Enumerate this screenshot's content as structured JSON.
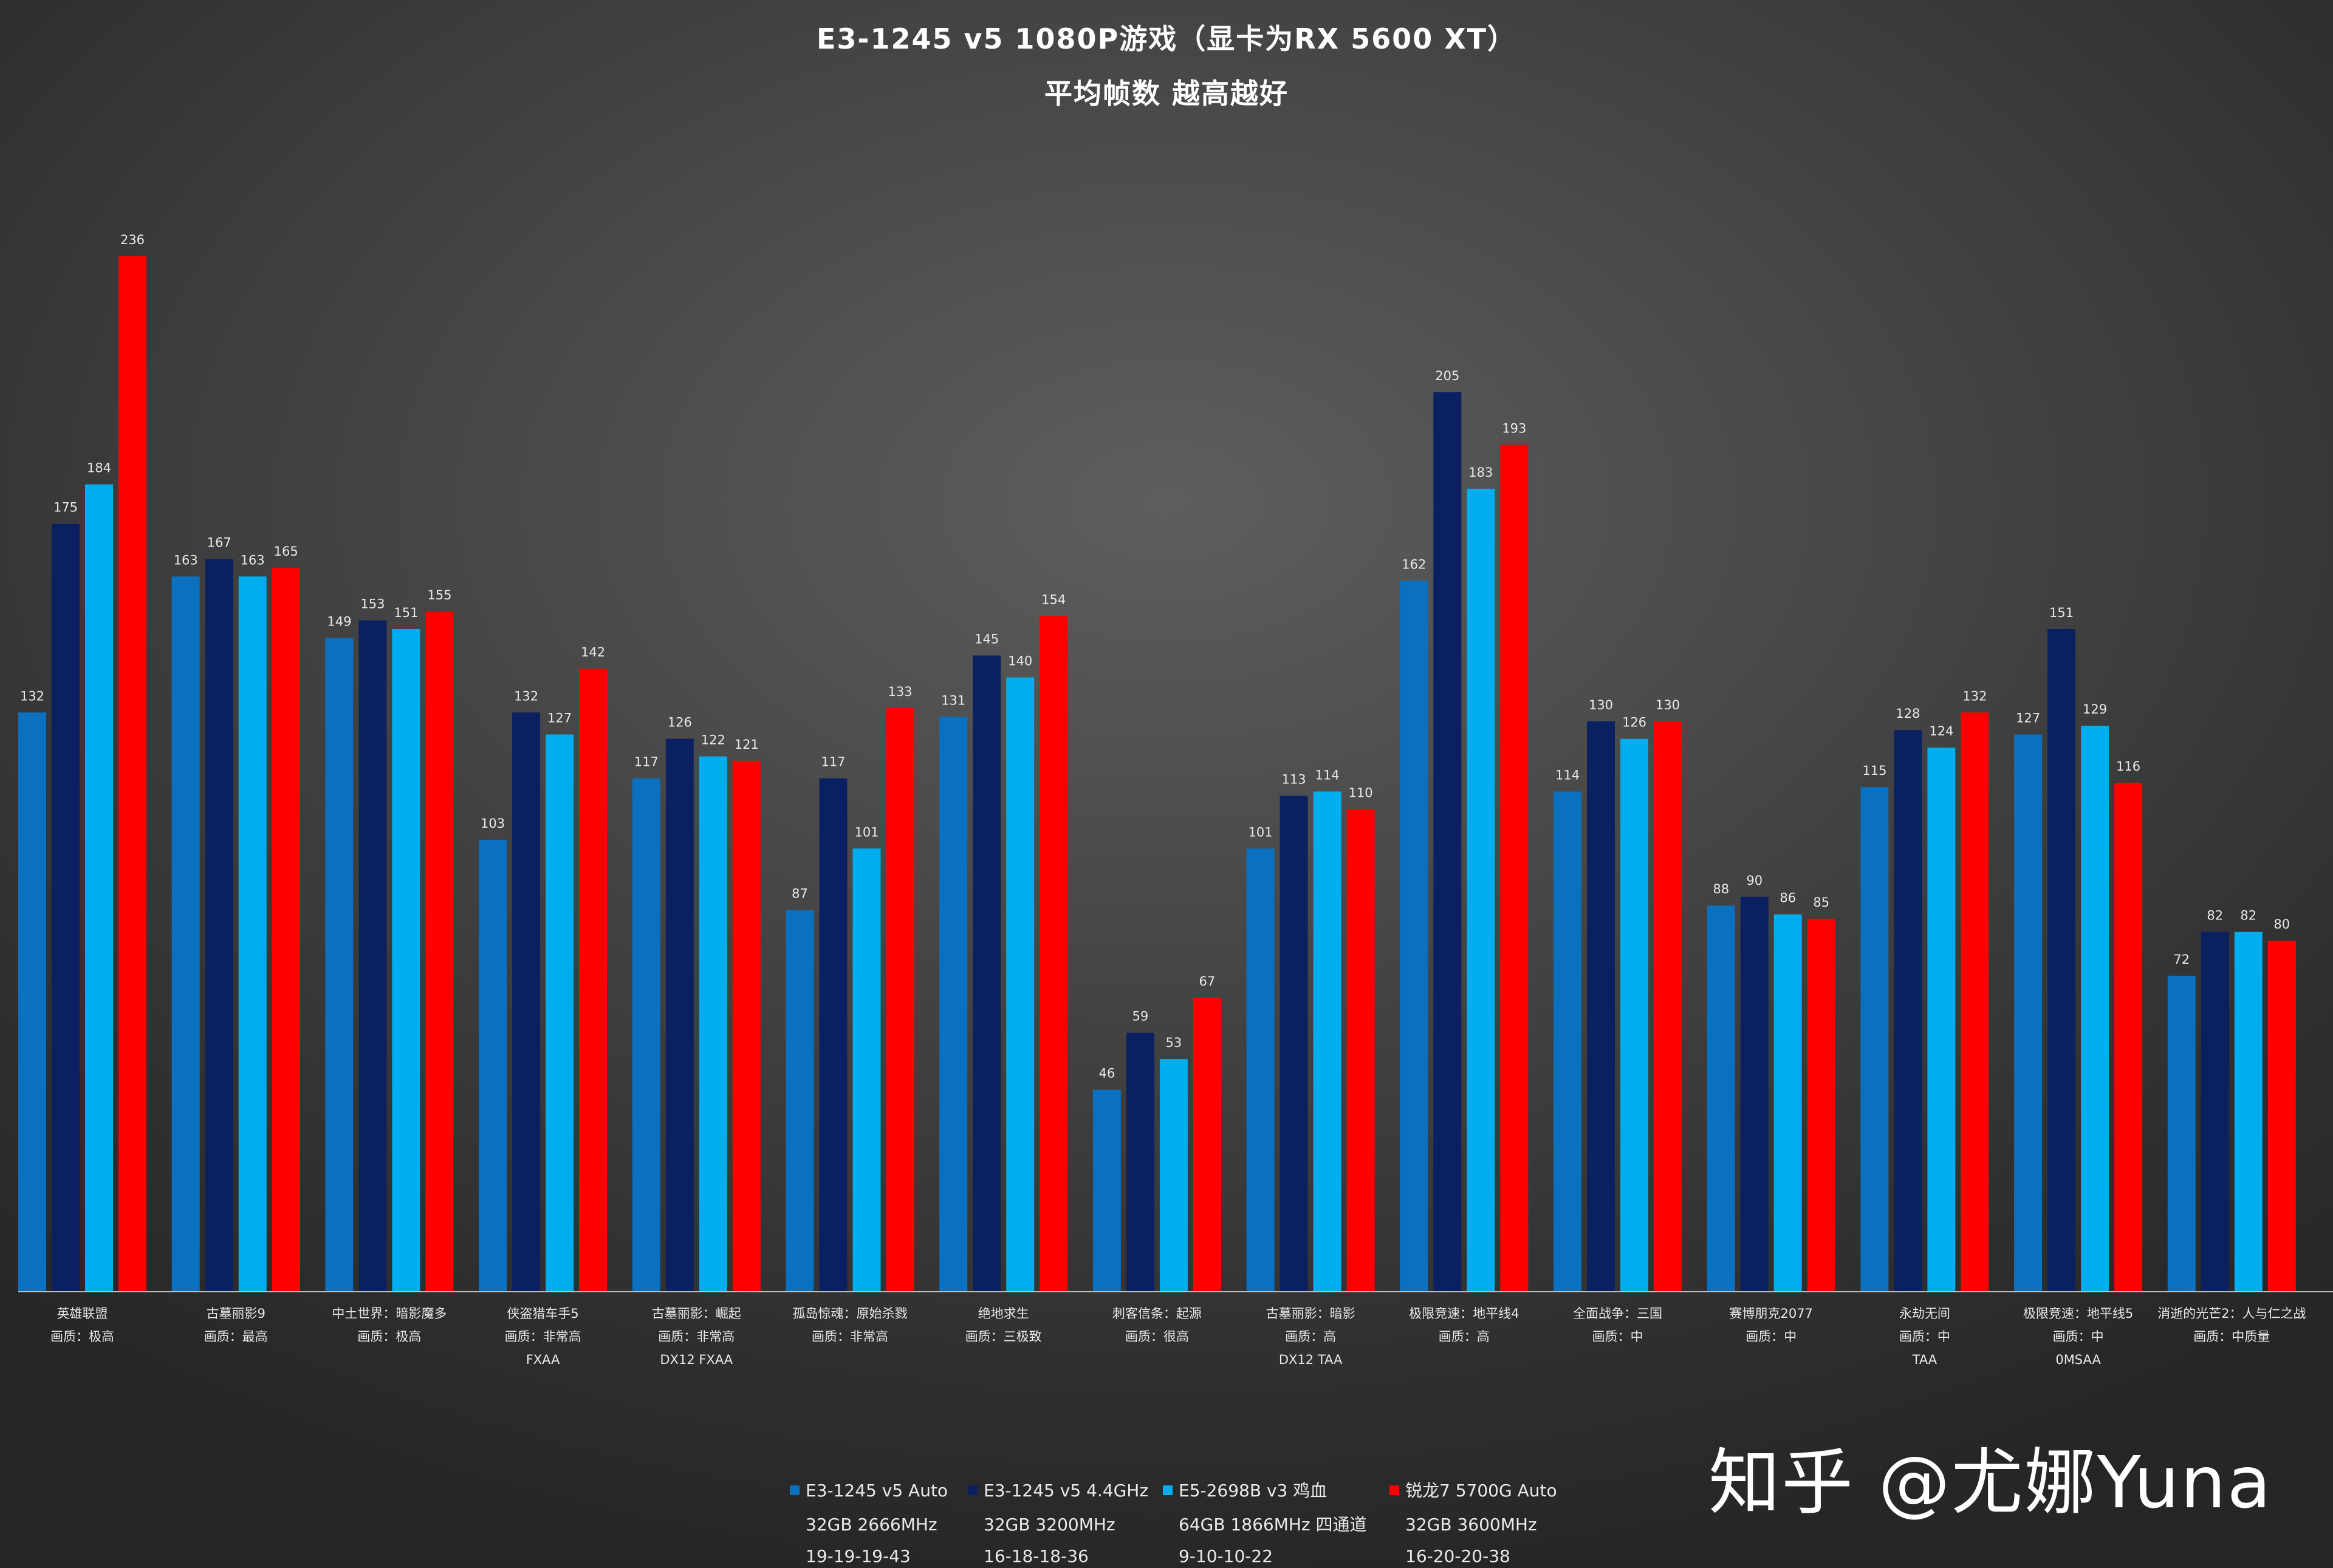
{
  "chart_data": {
    "type": "bar",
    "title": "E3-1245 v5 1080P游戏（显卡为RX 5600 XT）",
    "subtitle": "平均帧数 越高越好",
    "ylim": [
      0,
      250
    ],
    "grid": false,
    "legend_position": "bottom",
    "categories": [
      {
        "lines": [
          "英雄联盟",
          "画质：极高"
        ]
      },
      {
        "lines": [
          "古墓丽影9",
          "画质：最高"
        ]
      },
      {
        "lines": [
          "中土世界：暗影魔多",
          "画质：极高"
        ]
      },
      {
        "lines": [
          "侠盗猎车手5",
          "画质：非常高",
          "FXAA"
        ]
      },
      {
        "lines": [
          "古墓丽影：崛起",
          "画质：非常高",
          "DX12 FXAA"
        ]
      },
      {
        "lines": [
          "孤岛惊魂：原始杀戮",
          "画质：非常高"
        ]
      },
      {
        "lines": [
          "绝地求生",
          "画质：三极致"
        ]
      },
      {
        "lines": [
          "刺客信条：起源",
          "画质：很高"
        ]
      },
      {
        "lines": [
          "古墓丽影：暗影",
          "画质：高",
          "DX12 TAA"
        ]
      },
      {
        "lines": [
          "极限竞速：地平线4",
          "画质：高"
        ]
      },
      {
        "lines": [
          "全面战争：三国",
          "画质：中"
        ]
      },
      {
        "lines": [
          "赛博朋克2077",
          "画质：中"
        ]
      },
      {
        "lines": [
          "永劫无间",
          "画质：中",
          "TAA"
        ]
      },
      {
        "lines": [
          "极限竞速：地平线5",
          "画质：中",
          "0MSAA"
        ]
      },
      {
        "lines": [
          "消逝的光芒2：人与仁之战",
          "画质：中质量"
        ]
      }
    ],
    "series": [
      {
        "name": "E3-1245 v5 Auto",
        "name_lines": [
          "32GB 2666MHz",
          "19-19-19-43"
        ],
        "color": "#0A70C0",
        "values": [
          132,
          163,
          149,
          103,
          117,
          87,
          131,
          46,
          101,
          162,
          114,
          88,
          115,
          127,
          72
        ]
      },
      {
        "name": "E3-1245 v5 4.4GHz",
        "name_lines": [
          "32GB 3200MHz",
          "16-18-18-36"
        ],
        "color": "#0A2060",
        "values": [
          175,
          167,
          153,
          132,
          126,
          117,
          145,
          59,
          113,
          205,
          130,
          90,
          128,
          151,
          82
        ]
      },
      {
        "name": "E5-2698B v3 鸡血",
        "name_lines": [
          "64GB 1866MHz 四通道",
          "9-10-10-22"
        ],
        "color": "#00AEEF",
        "values": [
          184,
          163,
          151,
          127,
          122,
          101,
          140,
          53,
          114,
          183,
          126,
          86,
          124,
          129,
          82
        ]
      },
      {
        "name": "锐龙7 5700G Auto",
        "name_lines": [
          "32GB 3600MHz",
          "16-20-20-38"
        ],
        "color": "#FF0000",
        "values": [
          236,
          165,
          155,
          142,
          121,
          133,
          154,
          67,
          110,
          193,
          130,
          85,
          132,
          116,
          80
        ]
      }
    ]
  },
  "watermark": "知乎 @尤娜Yuna"
}
